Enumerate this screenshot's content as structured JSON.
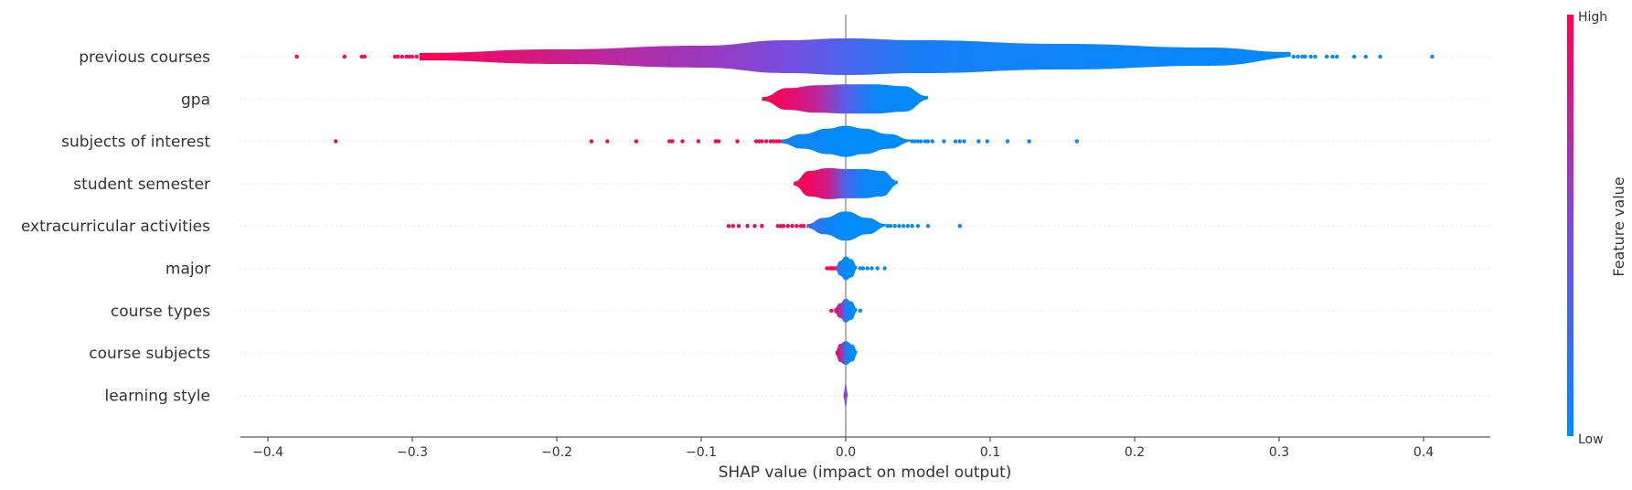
{
  "chart_data": {
    "type": "violin",
    "xlabel": "SHAP value (impact on model output)",
    "xlim": [
      -0.42,
      0.44
    ],
    "xticks": [
      -0.4,
      -0.3,
      -0.2,
      -0.1,
      0.0,
      0.1,
      0.2,
      0.3,
      0.4
    ],
    "xtick_labels": [
      "−0.4",
      "−0.3",
      "−0.2",
      "−0.1",
      "0.0",
      "0.1",
      "0.2",
      "0.3",
      "0.4"
    ],
    "colorbar": {
      "title": "Feature value",
      "high_label": "High",
      "low_label": "Low",
      "low_color": "#008bfb",
      "high_color": "#ff0052"
    },
    "features": [
      {
        "name": "previous courses",
        "body": [
          [
            -0.295,
            0.004,
            1
          ],
          [
            -0.2,
            0.008,
            0.8
          ],
          [
            -0.1,
            0.012,
            0.62
          ],
          [
            -0.04,
            0.018,
            0.48
          ],
          [
            0.0,
            0.02,
            0.3
          ],
          [
            0.05,
            0.018,
            0.1
          ],
          [
            0.15,
            0.014,
            0.05
          ],
          [
            0.25,
            0.01,
            0.03
          ],
          [
            0.308,
            0.005,
            0.02
          ]
        ],
        "outliers": [
          [
            -0.38,
            1
          ],
          [
            -0.347,
            1
          ],
          [
            -0.335,
            1
          ],
          [
            -0.333,
            1
          ],
          [
            -0.312,
            1
          ],
          [
            -0.31,
            1
          ],
          [
            -0.307,
            1
          ],
          [
            -0.304,
            1
          ],
          [
            -0.302,
            1
          ],
          [
            -0.3,
            1
          ],
          [
            -0.297,
            1
          ],
          [
            0.31,
            0
          ],
          [
            0.313,
            0
          ],
          [
            0.316,
            0
          ],
          [
            0.318,
            0
          ],
          [
            0.322,
            0
          ],
          [
            0.325,
            0
          ],
          [
            0.333,
            0
          ],
          [
            0.337,
            0
          ],
          [
            0.34,
            0
          ],
          [
            0.352,
            0
          ],
          [
            0.36,
            0
          ],
          [
            0.37,
            0
          ],
          [
            0.406,
            0
          ]
        ]
      },
      {
        "name": "gpa",
        "body": [
          [
            -0.058,
            0.002,
            1
          ],
          [
            -0.04,
            0.012,
            0.92
          ],
          [
            -0.02,
            0.015,
            0.75
          ],
          [
            0.0,
            0.016,
            0.35
          ],
          [
            0.02,
            0.016,
            0.05
          ],
          [
            0.04,
            0.014,
            0.02
          ],
          [
            0.057,
            0.003,
            0
          ]
        ],
        "outliers": []
      },
      {
        "name": "subjects of interest",
        "body": [
          [
            -0.045,
            0.002,
            0.1
          ],
          [
            -0.03,
            0.008,
            0.05
          ],
          [
            -0.012,
            0.014,
            0.02
          ],
          [
            0.0,
            0.017,
            0
          ],
          [
            0.012,
            0.014,
            0
          ],
          [
            0.03,
            0.008,
            0
          ],
          [
            0.045,
            0.002,
            0
          ]
        ],
        "outliers": [
          [
            -0.353,
            1
          ],
          [
            -0.176,
            1
          ],
          [
            -0.165,
            1
          ],
          [
            -0.145,
            1
          ],
          [
            -0.122,
            1
          ],
          [
            -0.12,
            1
          ],
          [
            -0.113,
            1
          ],
          [
            -0.102,
            1
          ],
          [
            -0.09,
            1
          ],
          [
            -0.088,
            1
          ],
          [
            -0.075,
            1
          ],
          [
            -0.062,
            1
          ],
          [
            -0.06,
            1
          ],
          [
            -0.058,
            1
          ],
          [
            -0.055,
            1
          ],
          [
            -0.052,
            1
          ],
          [
            -0.05,
            1
          ],
          [
            -0.048,
            1
          ],
          [
            -0.046,
            1
          ],
          [
            0.046,
            0
          ],
          [
            0.048,
            0
          ],
          [
            0.05,
            0
          ],
          [
            0.052,
            0
          ],
          [
            0.055,
            0
          ],
          [
            0.057,
            0
          ],
          [
            0.06,
            0
          ],
          [
            0.068,
            0
          ],
          [
            0.076,
            0
          ],
          [
            0.079,
            0
          ],
          [
            0.082,
            0
          ],
          [
            0.092,
            0
          ],
          [
            0.098,
            0
          ],
          [
            0.112,
            0
          ],
          [
            0.127,
            0
          ],
          [
            0.16,
            0
          ]
        ]
      },
      {
        "name": "student semester",
        "body": [
          [
            -0.036,
            0.002,
            1
          ],
          [
            -0.025,
            0.014,
            0.95
          ],
          [
            -0.012,
            0.017,
            0.8
          ],
          [
            0.0,
            0.016,
            0.3
          ],
          [
            0.012,
            0.016,
            0.05
          ],
          [
            0.025,
            0.014,
            0.02
          ],
          [
            0.036,
            0.003,
            0
          ]
        ],
        "outliers": []
      },
      {
        "name": "extracurricular activities",
        "body": [
          [
            -0.027,
            0.002,
            0.3
          ],
          [
            -0.015,
            0.009,
            0.1
          ],
          [
            0.0,
            0.016,
            0
          ],
          [
            0.015,
            0.009,
            0
          ],
          [
            0.028,
            0.002,
            0
          ]
        ],
        "outliers": [
          [
            -0.081,
            1
          ],
          [
            -0.078,
            1
          ],
          [
            -0.074,
            1
          ],
          [
            -0.068,
            1
          ],
          [
            -0.063,
            1
          ],
          [
            -0.058,
            1
          ],
          [
            -0.047,
            1
          ],
          [
            -0.045,
            1
          ],
          [
            -0.043,
            1
          ],
          [
            -0.04,
            1
          ],
          [
            -0.037,
            1
          ],
          [
            -0.034,
            1
          ],
          [
            -0.031,
            1
          ],
          [
            -0.029,
            1
          ],
          [
            0.029,
            0
          ],
          [
            0.031,
            0
          ],
          [
            0.034,
            0
          ],
          [
            0.037,
            0
          ],
          [
            0.04,
            0
          ],
          [
            0.043,
            0
          ],
          [
            0.046,
            0
          ],
          [
            0.05,
            0
          ],
          [
            0.057,
            0
          ],
          [
            0.079,
            0
          ]
        ]
      },
      {
        "name": "major",
        "body": [
          [
            -0.007,
            0.002,
            0.5
          ],
          [
            -0.004,
            0.008,
            0.1
          ],
          [
            0.0,
            0.013,
            0
          ],
          [
            0.004,
            0.01,
            0
          ],
          [
            0.008,
            0.002,
            0
          ]
        ],
        "outliers": [
          [
            -0.013,
            1
          ],
          [
            -0.011,
            1
          ],
          [
            -0.01,
            1
          ],
          [
            -0.009,
            1
          ],
          [
            -0.008,
            1
          ],
          [
            0.01,
            0
          ],
          [
            0.012,
            0
          ],
          [
            0.015,
            0
          ],
          [
            0.018,
            0
          ],
          [
            0.022,
            0
          ],
          [
            0.027,
            0
          ]
        ]
      },
      {
        "name": "course types",
        "body": [
          [
            -0.008,
            0.002,
            1
          ],
          [
            -0.004,
            0.008,
            0.7
          ],
          [
            0.0,
            0.013,
            0.1
          ],
          [
            0.004,
            0.01,
            0
          ],
          [
            0.008,
            0.002,
            0
          ]
        ],
        "outliers": [
          [
            -0.01,
            1
          ],
          [
            0.01,
            0
          ]
        ]
      },
      {
        "name": "course subjects",
        "body": [
          [
            -0.007,
            0.002,
            1
          ],
          [
            -0.004,
            0.01,
            0.8
          ],
          [
            0.0,
            0.013,
            0.1
          ],
          [
            0.005,
            0.009,
            0
          ],
          [
            0.008,
            0.002,
            0
          ]
        ],
        "outliers": []
      },
      {
        "name": "learning style",
        "body": [
          [
            -0.0015,
            0.002,
            1
          ],
          [
            0.0,
            0.012,
            0.5
          ],
          [
            0.0015,
            0.002,
            0
          ]
        ],
        "outliers": []
      }
    ]
  }
}
